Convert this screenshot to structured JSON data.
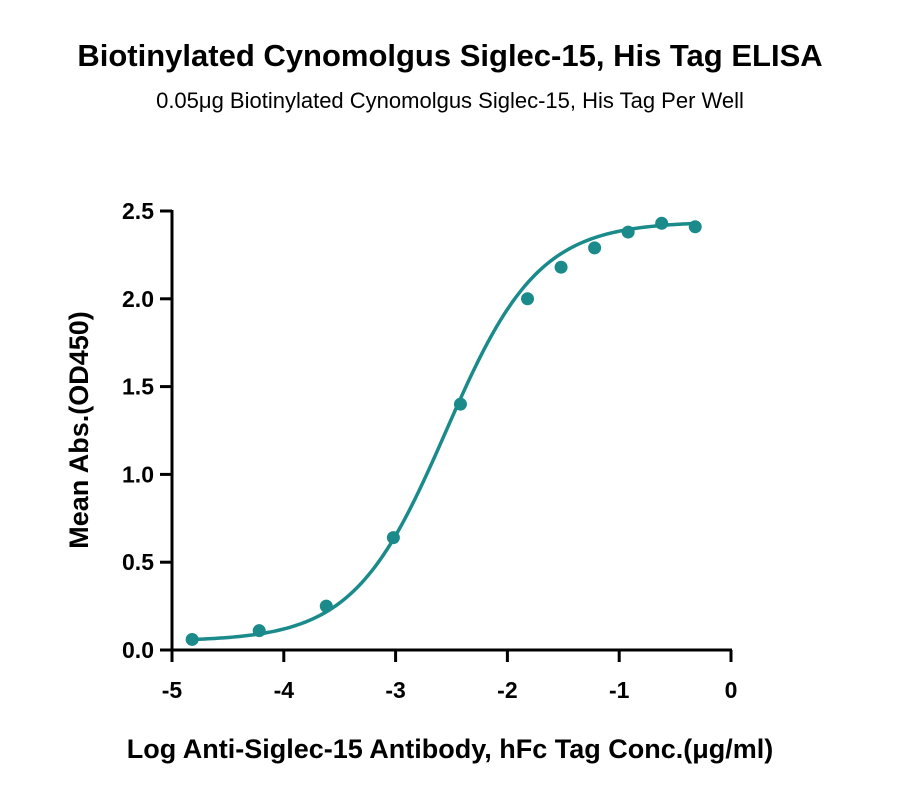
{
  "chart_data": {
    "type": "scatter",
    "title": "Biotinylated Cynomolgus Siglec-15, His Tag ELISA",
    "subtitle": "0.05μg Biotinylated Cynomolgus Siglec-15, His Tag Per Well",
    "xlabel": "Log Anti-Siglec-15 Antibody, hFc Tag Conc.(μg/ml)",
    "ylabel": "Mean Abs.(OD450)",
    "xlim": [
      -5,
      0
    ],
    "ylim": [
      0,
      2.5
    ],
    "xticks": [
      -5,
      -4,
      -3,
      -2,
      -1,
      0
    ],
    "yticks": [
      0.0,
      0.5,
      1.0,
      1.5,
      2.0,
      2.5
    ],
    "xtick_labels": [
      "-5",
      "-4",
      "-3",
      "-2",
      "-1",
      "0"
    ],
    "ytick_labels": [
      "0.0",
      "0.5",
      "1.0",
      "1.5",
      "2.0",
      "2.5"
    ],
    "series": [
      {
        "color": "#1a8a8a",
        "x": [
          -4.82,
          -4.22,
          -3.62,
          -3.02,
          -2.42,
          -1.82,
          -1.52,
          -1.22,
          -0.92,
          -0.62,
          -0.32
        ],
        "y": [
          0.06,
          0.11,
          0.25,
          0.64,
          1.4,
          2.0,
          2.18,
          2.29,
          2.38,
          2.43,
          2.41
        ],
        "fit": {
          "model": "4PL",
          "bottom": 0.05,
          "top": 2.44,
          "logEC50": -2.55,
          "hill": 1.05
        }
      }
    ],
    "grid": false,
    "legend": "none"
  }
}
